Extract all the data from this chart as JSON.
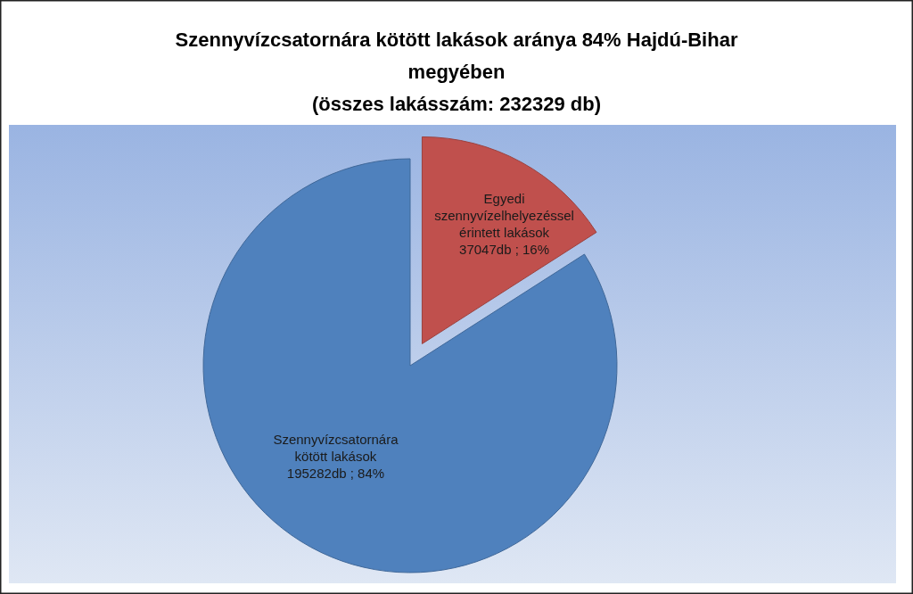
{
  "chart_data": {
    "type": "pie",
    "title": "Szennyvízcsatornára kötött lakások aránya 84% Hajdú-Bihar megyében",
    "subtitle": "(összes lakásszám: 232329 db)",
    "categories": [
      "Egyedi szennyvízelhelyezéssel érintett lakások",
      "Szennyvízcsatornára kötött lakások"
    ],
    "values": [
      37047,
      195282
    ],
    "colors": [
      "#c0504d",
      "#4f81bd"
    ],
    "value_labels": [
      "37047db ; 16%",
      "195282db ; 84%"
    ],
    "legend": false
  }
}
